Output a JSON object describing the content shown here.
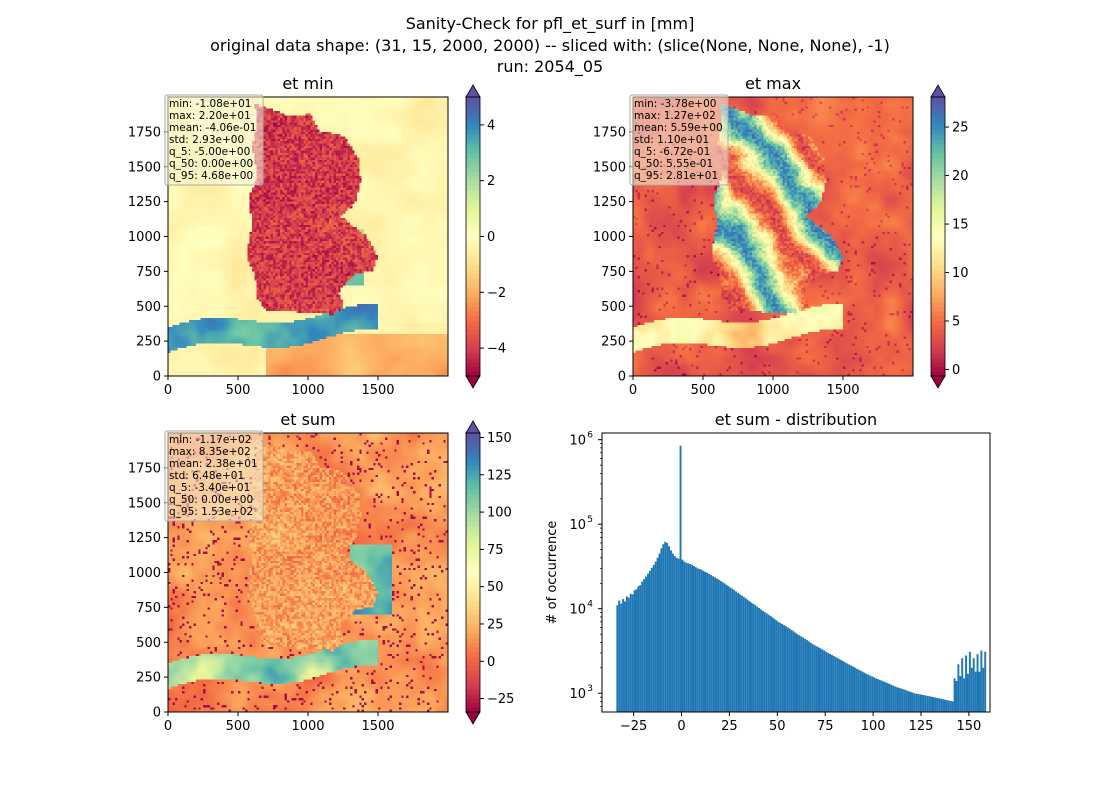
{
  "figure": {
    "title_lines": [
      "Sanity-Check for pfl_et_surf in [mm]",
      "original data shape: (31, 15, 2000, 2000) -- sliced with: (slice(None, None, None), -1)",
      "run: 2054_05"
    ]
  },
  "chart_data": [
    {
      "type": "heatmap",
      "title": "et min",
      "xlim": [
        0,
        2000
      ],
      "ylim": [
        0,
        2000
      ],
      "x_ticks": [
        "0",
        "500",
        "1000",
        "1500"
      ],
      "y_ticks": [
        "0",
        "250",
        "500",
        "750",
        "1000",
        "1250",
        "1500",
        "1750"
      ],
      "colormap": "Spectral",
      "colorbar": {
        "range": [
          -5.0,
          5.0
        ],
        "ticks": [
          "−4",
          "−2",
          "0",
          "2",
          "4"
        ],
        "tick_values": [
          -4,
          -2,
          0,
          2,
          4
        ],
        "extend": "both"
      },
      "stats": [
        "min: -1.08e+01",
        "max: 2.20e+01",
        "mean: -4.06e-01",
        "std: 2.93e+00",
        "q_5: -5.00e+00",
        "q_50: 0.00e+00",
        "q_95: 4.68e+00"
      ]
    },
    {
      "type": "heatmap",
      "title": "et max",
      "xlim": [
        0,
        2000
      ],
      "ylim": [
        0,
        2000
      ],
      "x_ticks": [
        "0",
        "500",
        "1000",
        "1500"
      ],
      "y_ticks": [
        "0",
        "250",
        "500",
        "750",
        "1000",
        "1250",
        "1500",
        "1750"
      ],
      "colormap": "Spectral",
      "colorbar": {
        "range": [
          -0.672,
          28.1
        ],
        "ticks": [
          "0",
          "5",
          "10",
          "15",
          "20",
          "25"
        ],
        "tick_values": [
          0,
          5,
          10,
          15,
          20,
          25
        ],
        "extend": "both"
      },
      "stats": [
        "min: -3.78e+00",
        "max: 1.27e+02",
        "mean: 5.59e+00",
        "std: 1.10e+01",
        "q_5: -6.72e-01",
        "q_50: 5.55e-01",
        "q_95: 2.81e+01"
      ]
    },
    {
      "type": "heatmap",
      "title": "et sum",
      "xlim": [
        0,
        2000
      ],
      "ylim": [
        0,
        2000
      ],
      "x_ticks": [
        "0",
        "500",
        "1000",
        "1500"
      ],
      "y_ticks": [
        "0",
        "250",
        "500",
        "750",
        "1000",
        "1250",
        "1500",
        "1750"
      ],
      "colormap": "Spectral",
      "colorbar": {
        "range": [
          -34.0,
          153.0
        ],
        "ticks": [
          "−25",
          "0",
          "25",
          "50",
          "75",
          "100",
          "125",
          "150"
        ],
        "tick_values": [
          -25,
          0,
          25,
          50,
          75,
          100,
          125,
          150
        ],
        "extend": "both"
      },
      "stats": [
        "min: -1.17e+02",
        "max: 8.35e+02",
        "mean: 2.38e+01",
        "std: 6.48e+01",
        "q_5: -3.40e+01",
        "q_50: 0.00e+00",
        "q_95: 1.53e+02"
      ]
    },
    {
      "type": "bar",
      "title": "et sum - distribution",
      "xlabel": "",
      "ylabel": "# of occurrence",
      "y_scale": "log",
      "xlim": [
        -41.5,
        161
      ],
      "ylim": [
        600,
        1200000
      ],
      "x_ticks": [
        "−25",
        "0",
        "25",
        "50",
        "75",
        "100",
        "125",
        "150"
      ],
      "x_tick_values": [
        -25,
        0,
        25,
        50,
        75,
        100,
        125,
        150
      ],
      "y_ticks": [
        "10",
        "10",
        "10",
        "10"
      ],
      "y_tick_exponents": [
        "3",
        "4",
        "5",
        "6"
      ],
      "y_tick_values": [
        1000,
        10000,
        100000,
        1000000
      ],
      "color": "#1f77b4",
      "bin_range": [
        -34,
        153
      ],
      "bin_width": 1,
      "values": [
        11000,
        12500,
        11500,
        13000,
        12200,
        14000,
        13500,
        15000,
        14800,
        16500,
        17000,
        18500,
        19000,
        21000,
        22500,
        24000,
        26000,
        28000,
        30500,
        33000,
        36000,
        40000,
        45000,
        52000,
        58000,
        62000,
        60000,
        55000,
        49000,
        45000,
        42000,
        40000,
        39000,
        850000,
        38000,
        36000,
        35000,
        34500,
        33800,
        33000,
        32000,
        31000,
        30000,
        29500,
        28800,
        28000,
        27200,
        26500,
        25800,
        25000,
        24200,
        23500,
        22800,
        22000,
        21300,
        20600,
        19900,
        19200,
        18500,
        17800,
        17200,
        16600,
        16000,
        15400,
        14800,
        14300,
        13800,
        13300,
        12800,
        12300,
        11800,
        11400,
        11000,
        10600,
        10200,
        9800,
        9400,
        9100,
        8800,
        8500,
        8200,
        7900,
        7600,
        7300,
        7000,
        6800,
        6600,
        6400,
        6200,
        6000,
        5800,
        5600,
        5400,
        5200,
        5000,
        4850,
        4700,
        4550,
        4400,
        4250,
        4100,
        3950,
        3800,
        3700,
        3600,
        3500,
        3400,
        3300,
        3200,
        3100,
        3000,
        2920,
        2840,
        2760,
        2680,
        2600,
        2530,
        2460,
        2390,
        2320,
        2250,
        2190,
        2130,
        2070,
        2010,
        1950,
        1900,
        1850,
        1800,
        1750,
        1700,
        1660,
        1620,
        1580,
        1540,
        1500,
        1470,
        1440,
        1410,
        1380,
        1350,
        1320,
        1290,
        1260,
        1230,
        1200,
        1180,
        1160,
        1140,
        1120,
        1100,
        1080,
        1060,
        1040,
        1020,
        1000,
        990,
        980,
        970,
        960,
        950,
        940,
        930,
        920,
        910,
        900,
        890,
        880,
        870,
        860,
        850,
        840,
        830,
        820,
        810,
        800,
        1500,
        1400,
        2200,
        1600,
        2600,
        1500,
        2800,
        1700,
        3100,
        2000,
        2600,
        1800,
        2900,
        1800,
        3200,
        2000,
        3100
      ]
    }
  ]
}
